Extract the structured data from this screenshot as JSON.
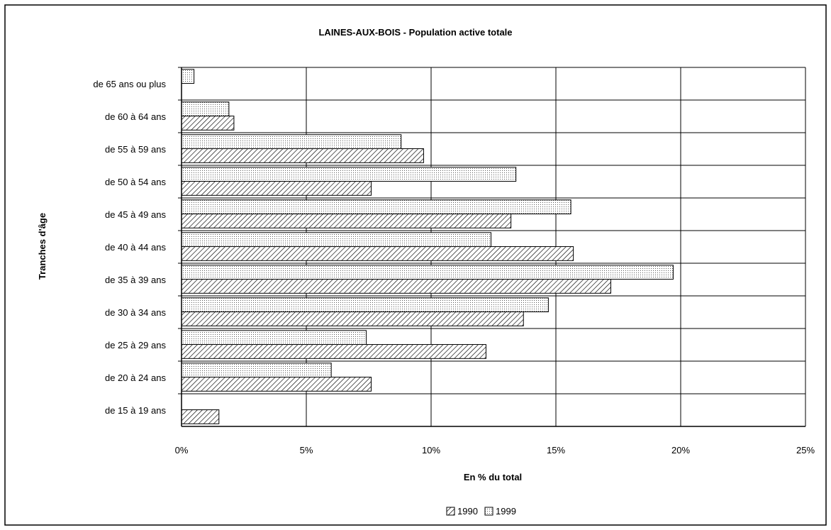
{
  "chart_data": {
    "type": "bar",
    "orientation": "horizontal",
    "title": "LAINES-AUX-BOIS - Population active totale",
    "xlabel": "En % du total",
    "ylabel": "Tranches d'âge",
    "xlim": [
      0,
      25
    ],
    "x_ticks": [
      "0%",
      "5%",
      "10%",
      "15%",
      "20%",
      "25%"
    ],
    "grid": true,
    "legend_position": "bottom-center",
    "categories": [
      "de 15 à 19 ans",
      "de 20 à 24 ans",
      "de 25 à 29 ans",
      "de 30 à 34 ans",
      "de 35 à 39 ans",
      "de 40 à 44 ans",
      "de 45 à 49 ans",
      "de 50 à 54 ans",
      "de 55 à 59 ans",
      "de 60 à 64 ans",
      "de 65 ans ou plus"
    ],
    "series": [
      {
        "name": "1990",
        "pattern": "hatched",
        "values": [
          1.5,
          7.6,
          12.2,
          13.7,
          17.2,
          15.7,
          13.2,
          7.6,
          9.7,
          2.1,
          0
        ]
      },
      {
        "name": "1999",
        "pattern": "dotted",
        "values": [
          0,
          6.0,
          7.4,
          14.7,
          19.7,
          12.4,
          15.6,
          13.4,
          8.8,
          1.9,
          0.5
        ]
      }
    ],
    "colors": {
      "border": "#000000",
      "grid": "#000000",
      "bar_fill": "#ffffff"
    }
  }
}
